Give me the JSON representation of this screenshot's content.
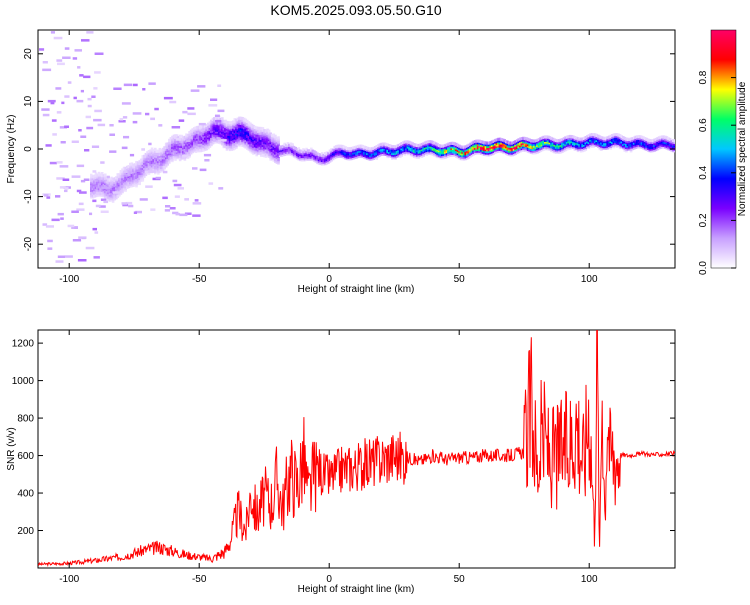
{
  "title": "KOM5.2025.093.05.50.G10",
  "chart_data": [
    {
      "type": "heatmap",
      "title": "KOM5.2025.093.05.50.G10",
      "xlabel": "Height of straight line (km)",
      "ylabel": "Frequency (Hz)",
      "xlim": [
        -112,
        133
      ],
      "ylim": [
        -25,
        25
      ],
      "xticks": [
        -100,
        -50,
        0,
        50,
        100
      ],
      "yticks": [
        -20,
        -10,
        0,
        10,
        20
      ],
      "colorbar": {
        "label": "Normalized spectral amplitude",
        "range": [
          0,
          1
        ],
        "ticks": [
          "0.0",
          "0.2",
          "0.4",
          "0.6",
          "0.8"
        ],
        "colors": [
          "#ffffff",
          "#c8a0ff",
          "#7a00ff",
          "#0000ff",
          "#00c8ff",
          "#00ff66",
          "#ffff00",
          "#ff0000",
          "#ff0066"
        ]
      },
      "ridge": {
        "x": [
          -90,
          -85,
          -80,
          -75,
          -70,
          -65,
          -60,
          -55,
          -50,
          -45,
          -40,
          -35,
          -30,
          -25,
          -20,
          -15,
          -10,
          -5,
          0,
          5,
          10,
          20,
          30,
          40,
          50,
          60,
          70,
          80,
          90,
          100,
          110,
          120,
          133
        ],
        "freq": [
          -7.5,
          -8.5,
          -7,
          -5,
          -3,
          -2,
          0,
          1,
          2,
          4,
          3,
          3.5,
          2.5,
          1,
          0,
          -0.5,
          -1,
          -2,
          -1.5,
          -0.5,
          -1,
          -0.5,
          0,
          0,
          -0.5,
          0.5,
          0.5,
          1,
          1,
          1.5,
          1.5,
          1,
          1
        ],
        "amplitude": [
          0.15,
          0.15,
          0.15,
          0.15,
          0.15,
          0.15,
          0.18,
          0.18,
          0.2,
          0.25,
          0.3,
          0.35,
          0.3,
          0.25,
          0.25,
          0.25,
          0.25,
          0.25,
          0.3,
          0.35,
          0.4,
          0.45,
          0.5,
          0.6,
          0.75,
          0.95,
          0.9,
          0.7,
          0.55,
          0.45,
          0.45,
          0.4,
          0.35
        ]
      }
    },
    {
      "type": "line",
      "xlabel": "Height of straight line (km)",
      "ylabel": "SNR (v/v)",
      "xlim": [
        -112,
        133
      ],
      "ylim": [
        0,
        1270
      ],
      "xticks": [
        -100,
        -50,
        0,
        50,
        100
      ],
      "yticks": [
        200,
        400,
        600,
        800,
        1000,
        1200
      ],
      "series": [
        {
          "color": "#ff0000",
          "x": [
            -112,
            -100,
            -90,
            -80,
            -75,
            -70,
            -65,
            -60,
            -55,
            -50,
            -45,
            -40,
            -38,
            -35,
            -32,
            -30,
            -28,
            -25,
            -22,
            -20,
            -18,
            -15,
            -12,
            -10,
            -8,
            -5,
            -2,
            0,
            5,
            10,
            15,
            20,
            25,
            30,
            35,
            40,
            45,
            50,
            55,
            60,
            65,
            70,
            75,
            78,
            80,
            82,
            85,
            88,
            90,
            92,
            95,
            98,
            100,
            102,
            103,
            104,
            105,
            106,
            107,
            108,
            110,
            115,
            120,
            125,
            133
          ],
          "y": [
            20,
            25,
            40,
            60,
            80,
            100,
            110,
            90,
            70,
            60,
            50,
            90,
            150,
            300,
            200,
            420,
            280,
            380,
            350,
            480,
            320,
            520,
            440,
            600,
            380,
            550,
            500,
            480,
            530,
            540,
            560,
            580,
            600,
            590,
            570,
            600,
            580,
            590,
            590,
            600,
            600,
            600,
            620,
            880,
            520,
            720,
            580,
            600,
            640,
            620,
            800,
            560,
            900,
            200,
            1230,
            80,
            1050,
            300,
            900,
            600,
            610,
            600,
            610,
            605,
            610
          ]
        }
      ]
    }
  ]
}
